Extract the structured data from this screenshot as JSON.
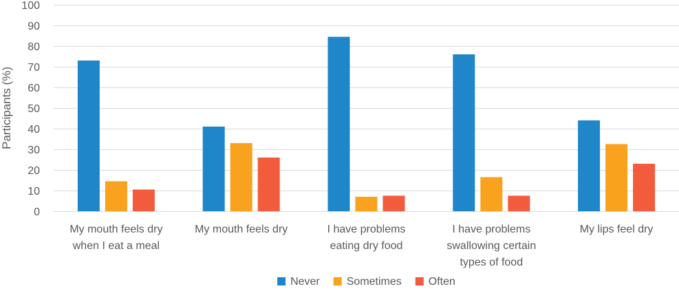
{
  "chart_data": {
    "type": "bar",
    "categories": [
      [
        "My mouth feels dry",
        "when I eat a meal"
      ],
      [
        "My mouth feels dry"
      ],
      [
        "I have problems",
        "eating dry food"
      ],
      [
        "I have problems",
        "swallowing certain",
        "types of food"
      ],
      [
        "My lips feel dry"
      ]
    ],
    "series": [
      {
        "name": "Never",
        "color": "#1f86c9",
        "values": [
          73,
          41,
          84.5,
          76,
          44
        ]
      },
      {
        "name": "Sometimes",
        "color": "#f9a21d",
        "values": [
          14.5,
          33,
          7,
          16.5,
          32.5
        ]
      },
      {
        "name": "Often",
        "color": "#f25c3c",
        "values": [
          10.5,
          26,
          7.5,
          7.5,
          23
        ]
      }
    ],
    "ylabel": "Participants (%)",
    "ylim": [
      0,
      100
    ],
    "yticks": [
      "0",
      "10",
      "20",
      "30",
      "40",
      "50",
      "60",
      "70",
      "80",
      "90",
      "100"
    ],
    "grid": true,
    "legend_position": "bottom"
  }
}
